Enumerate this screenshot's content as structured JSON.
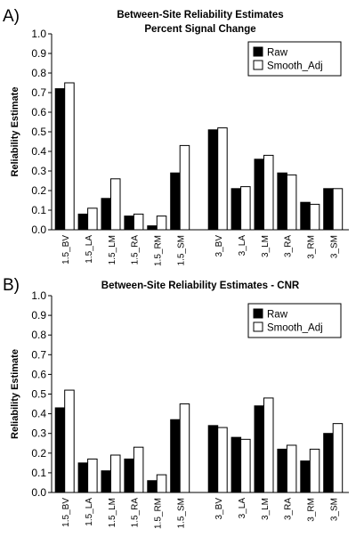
{
  "chart_data": [
    {
      "type": "bar",
      "panel_label": "A)",
      "title": "Between-Site Reliability Estimates",
      "subtitle": "Percent Signal Change",
      "xlabel": "",
      "ylabel": "Reliability Estimate",
      "ylim": [
        0,
        1.0
      ],
      "yticks": [
        "0.0",
        "0.1",
        "0.2",
        "0.3",
        "0.4",
        "0.5",
        "0.6",
        "0.7",
        "0.8",
        "0.9",
        "1.0"
      ],
      "legend_position": "top-right",
      "grid": false,
      "categories": [
        "1.5_BV",
        "1.5_LA",
        "1.5_LM",
        "1.5_RA",
        "1.5_RM",
        "1.5_SM",
        "3_BV",
        "3_LA",
        "3_LM",
        "3_RA",
        "3_RM",
        "3_SM"
      ],
      "series": [
        {
          "name": "Raw",
          "color": "#000000",
          "values": [
            0.72,
            0.08,
            0.16,
            0.07,
            0.02,
            0.29,
            0.51,
            0.21,
            0.36,
            0.29,
            0.14,
            0.21
          ]
        },
        {
          "name": "Smooth_Adj",
          "color": "#ffffff",
          "values": [
            0.75,
            0.11,
            0.26,
            0.08,
            0.07,
            0.43,
            0.52,
            0.22,
            0.38,
            0.28,
            0.13,
            0.21
          ]
        }
      ]
    },
    {
      "type": "bar",
      "panel_label": "B)",
      "title": "Between-Site Reliability Estimates - CNR",
      "subtitle": "",
      "xlabel": "",
      "ylabel": "Reliability Estimate",
      "ylim": [
        0,
        1.0
      ],
      "yticks": [
        "0.0",
        "0.1",
        "0.2",
        "0.3",
        "0.4",
        "0.5",
        "0.6",
        "0.7",
        "0.8",
        "0.9",
        "1.0"
      ],
      "legend_position": "top-right",
      "grid": false,
      "categories": [
        "1.5_BV",
        "1.5_LA",
        "1.5_LM",
        "1.5_RA",
        "1.5_RM",
        "1.5_SM",
        "3_BV",
        "3_LA",
        "3_LM",
        "3_RA",
        "3_RM",
        "3_SM"
      ],
      "series": [
        {
          "name": "Raw",
          "color": "#000000",
          "values": [
            0.43,
            0.15,
            0.11,
            0.17,
            0.06,
            0.37,
            0.34,
            0.28,
            0.44,
            0.22,
            0.16,
            0.3
          ]
        },
        {
          "name": "Smooth_Adj",
          "color": "#ffffff",
          "values": [
            0.52,
            0.17,
            0.19,
            0.23,
            0.09,
            0.45,
            0.33,
            0.27,
            0.48,
            0.24,
            0.22,
            0.35
          ]
        }
      ]
    }
  ]
}
